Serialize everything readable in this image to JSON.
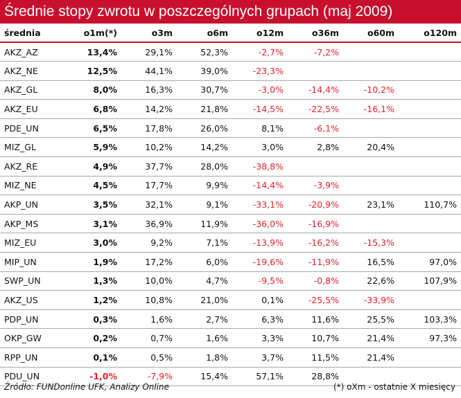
{
  "title": "Średnie stopy zwrotu w poszczególnych grupach (maj 2009)",
  "table": {
    "headers": [
      "średnia",
      "o1m(*)",
      "o3m",
      "o6m",
      "o12m",
      "o36m",
      "o60m",
      "o120m"
    ],
    "rows": [
      [
        "AKZ_AZ",
        "13,4%",
        "29,1%",
        "52,3%",
        "-2,7%",
        "-7,2%",
        "",
        ""
      ],
      [
        "AKZ_NE",
        "12,5%",
        "44,1%",
        "39,0%",
        "-23,3%",
        "",
        "",
        ""
      ],
      [
        "AKZ_GL",
        "8,0%",
        "16,3%",
        "30,7%",
        "-3,0%",
        "-14,4%",
        "-10,2%",
        ""
      ],
      [
        "AKZ_EU",
        "6,8%",
        "14,2%",
        "21,8%",
        "-14,5%",
        "-22,5%",
        "-16,1%",
        ""
      ],
      [
        "PDE_UN",
        "6,5%",
        "17,8%",
        "26,0%",
        "8,1%",
        "-6,1%",
        "",
        ""
      ],
      [
        "MIZ_GL",
        "5,9%",
        "10,2%",
        "14,2%",
        "3,0%",
        "2,8%",
        "20,4%",
        ""
      ],
      [
        "AKZ_RE",
        "4,9%",
        "37,7%",
        "28,0%",
        "-38,8%",
        "",
        "",
        ""
      ],
      [
        "MIZ_NE",
        "4,5%",
        "17,7%",
        "9,9%",
        "-14,4%",
        "-3,9%",
        "",
        ""
      ],
      [
        "AKP_UN",
        "3,5%",
        "32,1%",
        "9,1%",
        "-33,1%",
        "-20,9%",
        "23,1%",
        "110,7%"
      ],
      [
        "AKP_MS",
        "3,1%",
        "36,9%",
        "11,9%",
        "-36,0%",
        "-16,9%",
        "",
        ""
      ],
      [
        "MIZ_EU",
        "3,0%",
        "9,2%",
        "7,1%",
        "-13,9%",
        "-16,2%",
        "-15,3%",
        ""
      ],
      [
        "MIP_UN",
        "1,9%",
        "17,2%",
        "6,0%",
        "-19,6%",
        "-11,9%",
        "16,5%",
        "97,0%"
      ],
      [
        "SWP_UN",
        "1,3%",
        "10,0%",
        "4,7%",
        "-9,5%",
        "-0,8%",
        "22,6%",
        "107,9%"
      ],
      [
        "AKZ_US",
        "1,2%",
        "10,8%",
        "21,0%",
        "0,1%",
        "-25,5%",
        "-33,9%",
        ""
      ],
      [
        "PDP_UN",
        "0,3%",
        "1,6%",
        "2,7%",
        "6,3%",
        "11,6%",
        "25,5%",
        "103,3%"
      ],
      [
        "OKP_GW",
        "0,2%",
        "0,7%",
        "1,6%",
        "3,3%",
        "10,7%",
        "21,4%",
        "97,3%"
      ],
      [
        "RPP_UN",
        "0,1%",
        "0,5%",
        "1,8%",
        "3,7%",
        "11,5%",
        "21,4%",
        ""
      ],
      [
        "PDU_UN",
        "-1,0%",
        "-7,9%",
        "15,4%",
        "57,1%",
        "28,8%",
        "",
        ""
      ]
    ]
  },
  "footer": {
    "source": "Źródło: FUNDonline UFK, Analizy Online",
    "note": "(*) oXm - ostatnie X miesięcy"
  },
  "colors": {
    "accent": "#c8102e",
    "negative": "#e8202a"
  }
}
